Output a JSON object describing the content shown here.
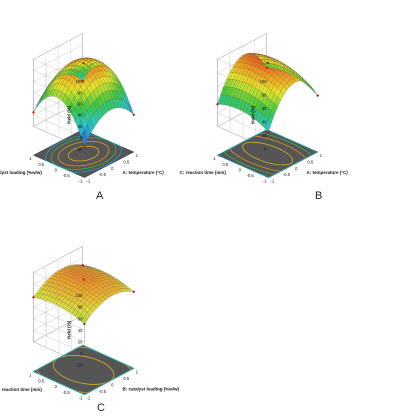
{
  "figure": {
    "panels": [
      "A",
      "B",
      "C"
    ]
  },
  "chart_data": [
    {
      "type": "surface3d",
      "panel": "A",
      "title": "",
      "x": {
        "label": "A: temperature (°C)",
        "ticks": [
          "-1",
          "-0.5",
          "0",
          "0.5",
          "1"
        ],
        "range": [
          -1,
          1
        ]
      },
      "y": {
        "label": "catalyst loading (%w/w)",
        "ticks": [
          "-1",
          "-0.5",
          "0",
          "0.5",
          "1"
        ],
        "range": [
          -1,
          1
        ]
      },
      "z": {
        "label": "Yield (%)",
        "ticks": [
          "-20",
          "0",
          "20",
          "40",
          "60",
          "80",
          "100"
        ],
        "range": [
          -20,
          100
        ]
      },
      "model": {
        "b0": 90,
        "bx": 5,
        "by": 10,
        "bxx": -35,
        "byy": -55,
        "bxy": 0
      },
      "colormap": "blue-green-yellow-red",
      "contour_floor": true
    },
    {
      "type": "surface3d",
      "panel": "B",
      "title": "",
      "x": {
        "label": "A: temperature (°C)",
        "ticks": [
          "-1",
          "-0.5",
          "0",
          "0.5",
          "1"
        ],
        "range": [
          -1,
          1
        ]
      },
      "y": {
        "label": "C: reaction time (min)",
        "ticks": [
          "-1",
          "-0.5",
          "0",
          "0.5",
          "1"
        ],
        "range": [
          -1,
          1
        ]
      },
      "z": {
        "label": "Yield (%)",
        "ticks": [
          "0",
          "20",
          "40",
          "60",
          "80",
          "100"
        ],
        "range": [
          0,
          100
        ]
      },
      "model": {
        "b0": 92,
        "bx": 8,
        "by": 4,
        "bxx": -45,
        "byy": -10,
        "bxy": 0
      },
      "colormap": "blue-green-yellow-red",
      "contour_floor": true
    },
    {
      "type": "surface3d",
      "panel": "C",
      "title": "",
      "x": {
        "label": "B: catalyst loading (%w/w)",
        "ticks": [
          "-1",
          "-0.5",
          "0",
          "0.5",
          "1"
        ],
        "range": [
          -1,
          1
        ]
      },
      "y": {
        "label": "C: reaction time (min)",
        "ticks": [
          "-1",
          "-0.5",
          "0",
          "0.5",
          "1"
        ],
        "range": [
          -1,
          1
        ]
      },
      "z": {
        "label": "Yield (%)",
        "ticks": [
          "-20",
          "0",
          "20",
          "40",
          "60",
          "80",
          "100"
        ],
        "range": [
          -20,
          100
        ]
      },
      "model": {
        "b0": 85,
        "bx": 5,
        "by": 3,
        "bxx": -18,
        "byy": -8,
        "bxy": 0
      },
      "colormap": "yellow-orange-red",
      "contour_floor": true
    }
  ]
}
